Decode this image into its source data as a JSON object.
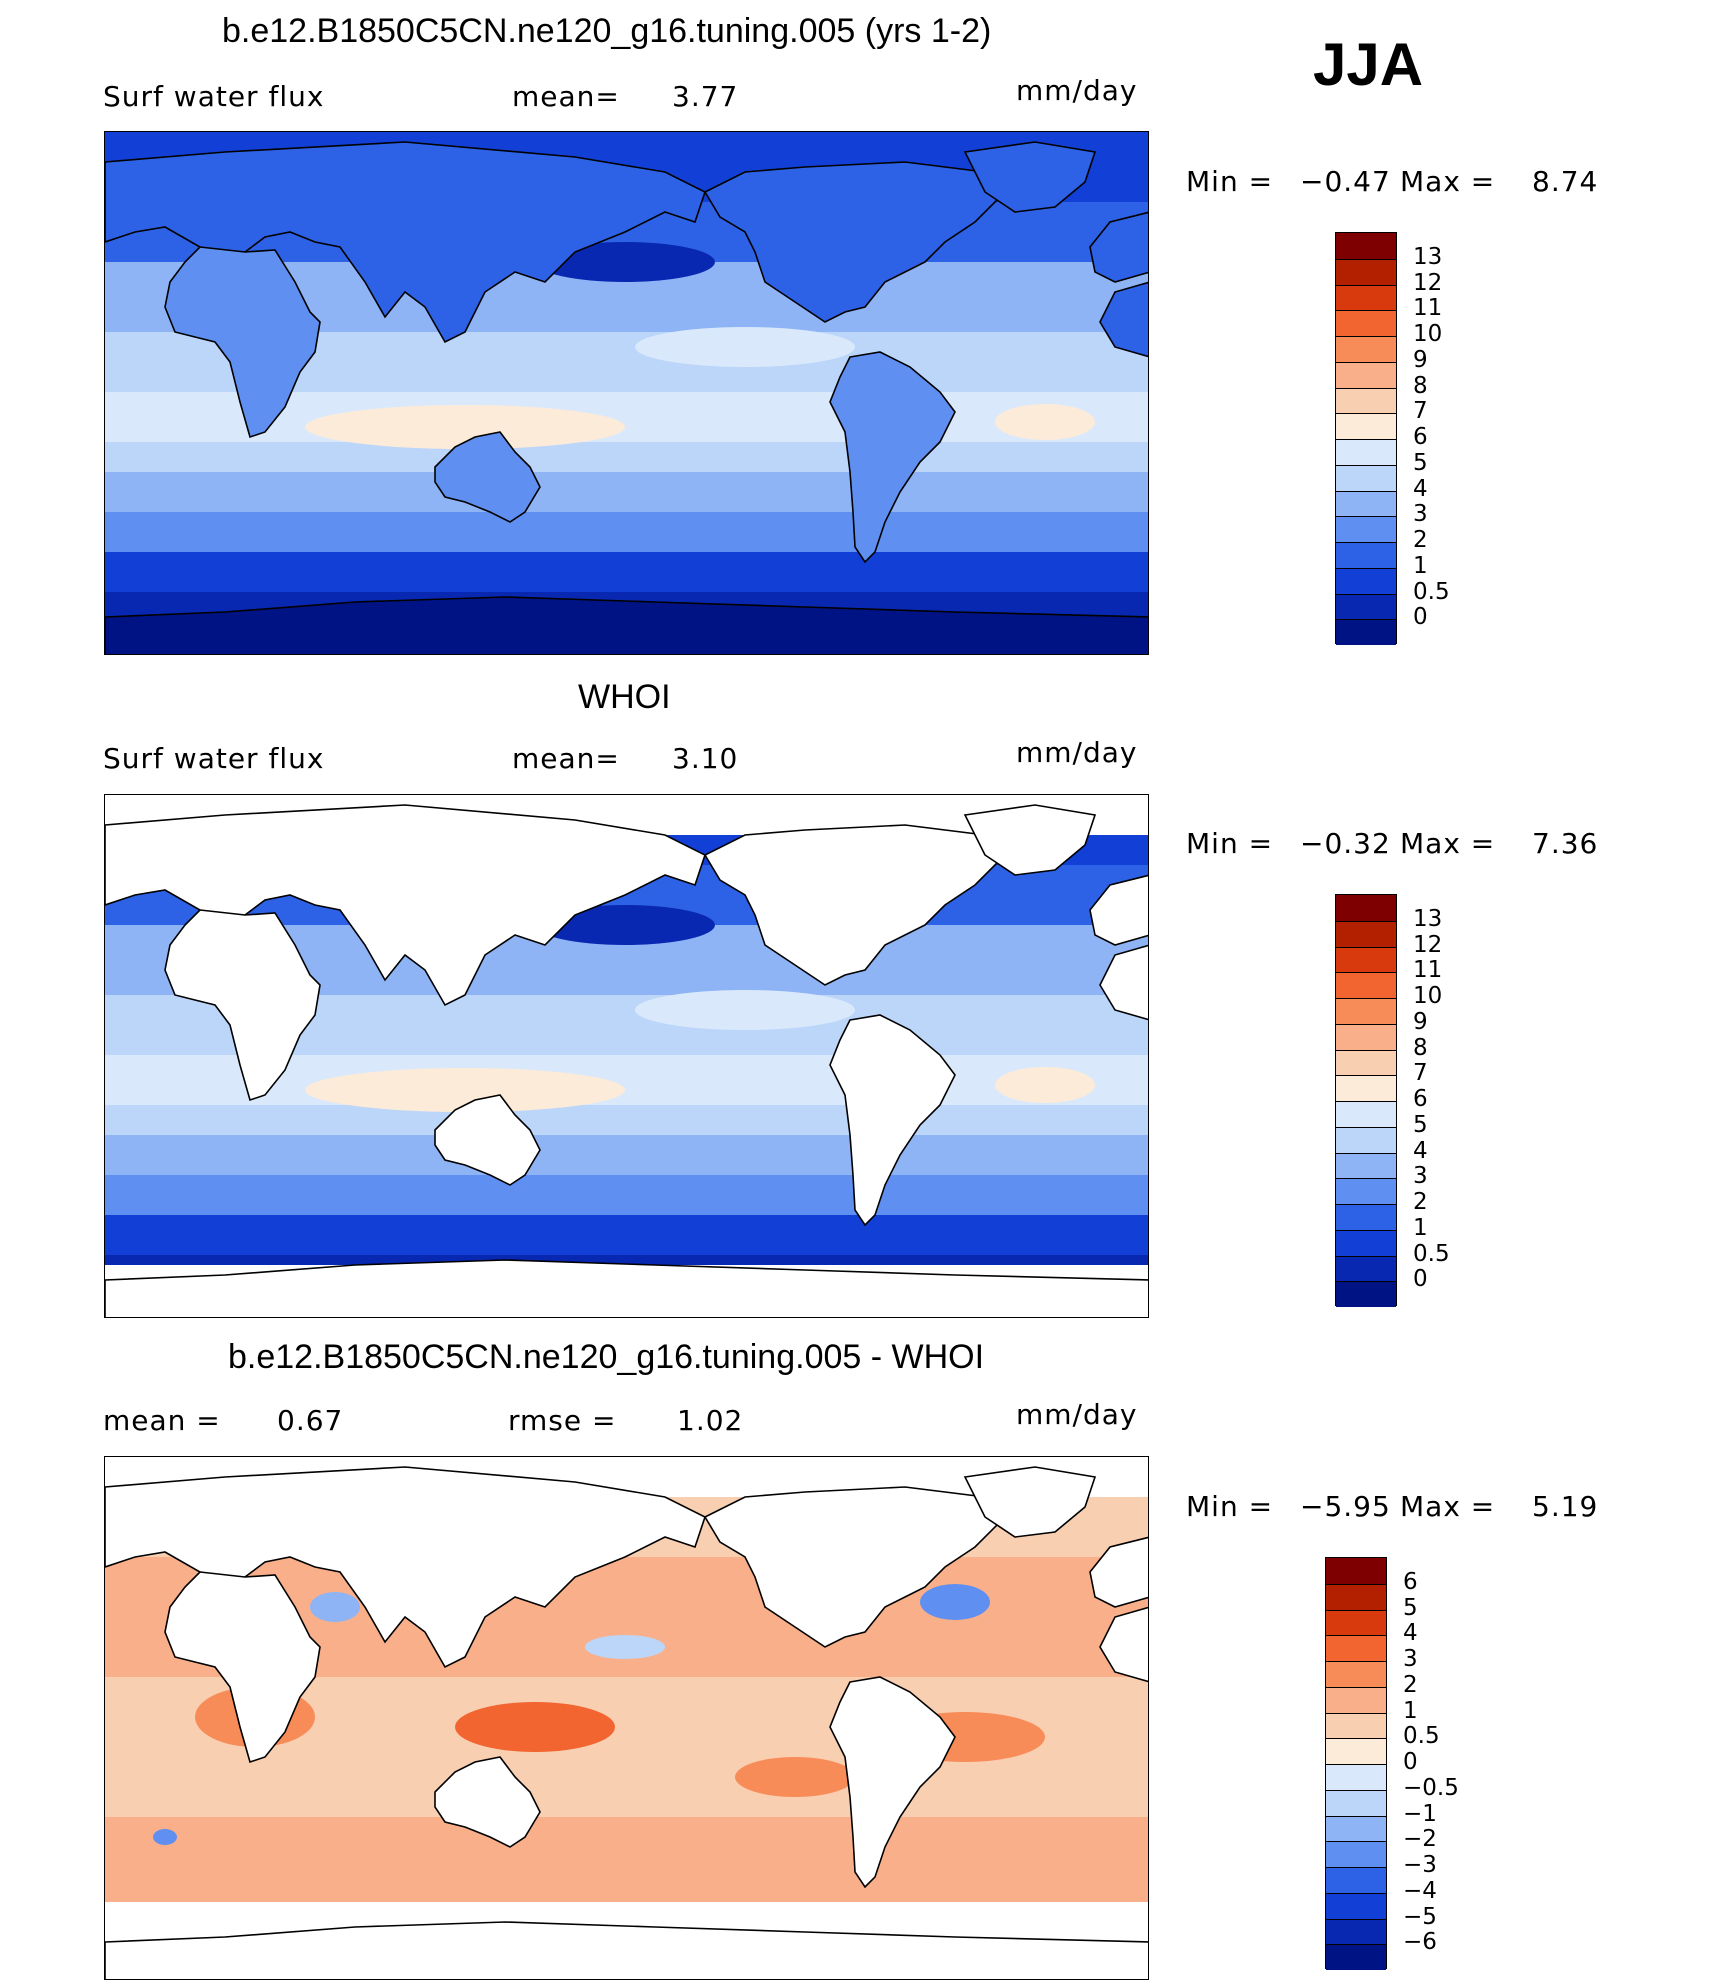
{
  "season": "JJA",
  "panels": [
    {
      "id": "model",
      "title": "b.e12.B1850C5CN.ne120_g16.tuning.005 (yrs 1-2)",
      "variable": "Surf water flux",
      "stat1_label": "mean=",
      "stat1_value": "3.77",
      "stat2_label": "",
      "stat2_value": "",
      "units": "mm/day",
      "min_label": "Min =",
      "min_value": "−0.47",
      "max_label": "Max =",
      "max_value": "8.74",
      "palette": "blue",
      "land_masked": false,
      "colorbar": {
        "labels": [
          "13",
          "12",
          "11",
          "10",
          "9",
          "8",
          "7",
          "6",
          "5",
          "4",
          "3",
          "2",
          "1",
          "0.5",
          "0"
        ],
        "colors": [
          "#7f0000",
          "#b22000",
          "#d83a0e",
          "#f26430",
          "#f78c58",
          "#f9b08a",
          "#f9cfb1",
          "#fdebd9",
          "#d9e9fb",
          "#bcd6fa",
          "#8fb4f5",
          "#5f8ff0",
          "#2d62e6",
          "#1240d6",
          "#0828b2",
          "#001384"
        ]
      }
    },
    {
      "id": "obs",
      "title": "WHOI",
      "variable": "Surf water flux",
      "stat1_label": "mean=",
      "stat1_value": "3.10",
      "stat2_label": "",
      "stat2_value": "",
      "units": "mm/day",
      "min_label": "Min =",
      "min_value": "−0.32",
      "max_label": "Max =",
      "max_value": "7.36",
      "palette": "blue",
      "land_masked": true,
      "colorbar": {
        "labels": [
          "13",
          "12",
          "11",
          "10",
          "9",
          "8",
          "7",
          "6",
          "5",
          "4",
          "3",
          "2",
          "1",
          "0.5",
          "0"
        ],
        "colors": [
          "#7f0000",
          "#b22000",
          "#d83a0e",
          "#f26430",
          "#f78c58",
          "#f9b08a",
          "#f9cfb1",
          "#fdebd9",
          "#d9e9fb",
          "#bcd6fa",
          "#8fb4f5",
          "#5f8ff0",
          "#2d62e6",
          "#1240d6",
          "#0828b2",
          "#001384"
        ]
      }
    },
    {
      "id": "diff",
      "title": "b.e12.B1850C5CN.ne120_g16.tuning.005 - WHOI",
      "variable": "",
      "stat1_label": "mean =",
      "stat1_value": "0.67",
      "stat2_label": "rmse =",
      "stat2_value": "1.02",
      "units": "mm/day",
      "min_label": "Min =",
      "min_value": "−5.95",
      "max_label": "Max =",
      "max_value": "5.19",
      "palette": "diff",
      "land_masked": true,
      "colorbar": {
        "labels": [
          "6",
          "5",
          "4",
          "3",
          "2",
          "1",
          "0.5",
          "0",
          "−0.5",
          "−1",
          "−2",
          "−3",
          "−4",
          "−5",
          "−6"
        ],
        "colors": [
          "#7f0000",
          "#b22000",
          "#d83a0e",
          "#f26430",
          "#f78c58",
          "#f9b08a",
          "#f9cfb1",
          "#fdebd9",
          "#d9e9fb",
          "#bcd6fa",
          "#8fb4f5",
          "#5f8ff0",
          "#2d62e6",
          "#1240d6",
          "#0828b2",
          "#001384"
        ]
      }
    }
  ]
}
